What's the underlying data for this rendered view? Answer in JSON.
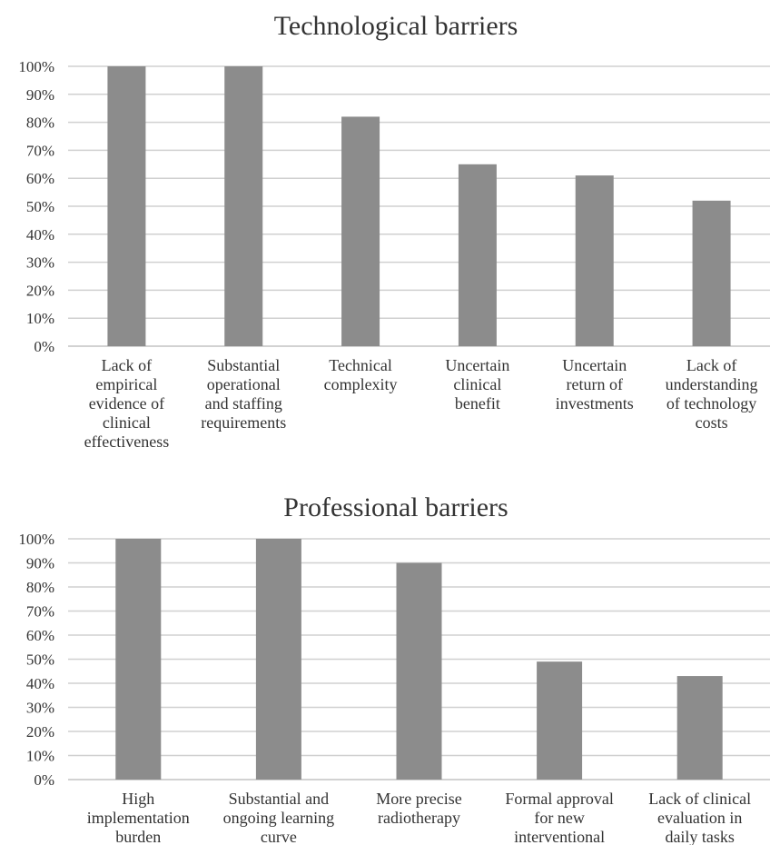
{
  "chart_data": [
    {
      "type": "bar",
      "title": "Technological barriers",
      "categories": [
        "Lack of empirical evidence of clinical effectiveness",
        "Substantial operational and staffing requirements",
        "Technical complexity",
        "Uncertain clinical benefit",
        "Uncertain return of investments",
        "Lack of understanding of technology costs"
      ],
      "category_lines": [
        [
          "Lack of",
          "empirical",
          "evidence of",
          "clinical",
          "effectiveness"
        ],
        [
          "Substantial",
          "operational",
          "and staffing",
          "requirements"
        ],
        [
          "Technical",
          "complexity"
        ],
        [
          "Uncertain",
          "clinical",
          "benefit"
        ],
        [
          "Uncertain",
          "return of",
          "investments"
        ],
        [
          "Lack of",
          "understanding",
          "of technology",
          "costs"
        ]
      ],
      "values": [
        100,
        100,
        82,
        65,
        61,
        52
      ],
      "unit": "%",
      "ylim": [
        0,
        100
      ],
      "yticks": [
        "0%",
        "10%",
        "20%",
        "30%",
        "40%",
        "50%",
        "60%",
        "70%",
        "80%",
        "90%",
        "100%"
      ],
      "grid": true,
      "colors": {
        "bar": "#8c8c8c",
        "grid": "#d0d0d0"
      }
    },
    {
      "type": "bar",
      "title": "Professional barriers",
      "categories": [
        "High implementation burden",
        "Substantial and ongoing learning curve",
        "More precise radiotherapy",
        "Formal approval for new interventional",
        "Lack of clinical evaluation in daily tasks"
      ],
      "category_lines": [
        [
          "High",
          "implementation",
          "burden"
        ],
        [
          "Substantial and",
          "ongoing learning",
          "curve"
        ],
        [
          "More precise",
          "radiotherapy"
        ],
        [
          "Formal approval",
          "for new",
          "interventional"
        ],
        [
          "Lack of clinical",
          "evaluation in",
          "daily tasks"
        ]
      ],
      "values": [
        100,
        100,
        90,
        49,
        43
      ],
      "unit": "%",
      "ylim": [
        0,
        100
      ],
      "yticks": [
        "0%",
        "10%",
        "20%",
        "30%",
        "40%",
        "50%",
        "60%",
        "70%",
        "80%",
        "90%",
        "100%"
      ],
      "grid": true,
      "colors": {
        "bar": "#8c8c8c",
        "grid": "#d0d0d0"
      }
    }
  ]
}
